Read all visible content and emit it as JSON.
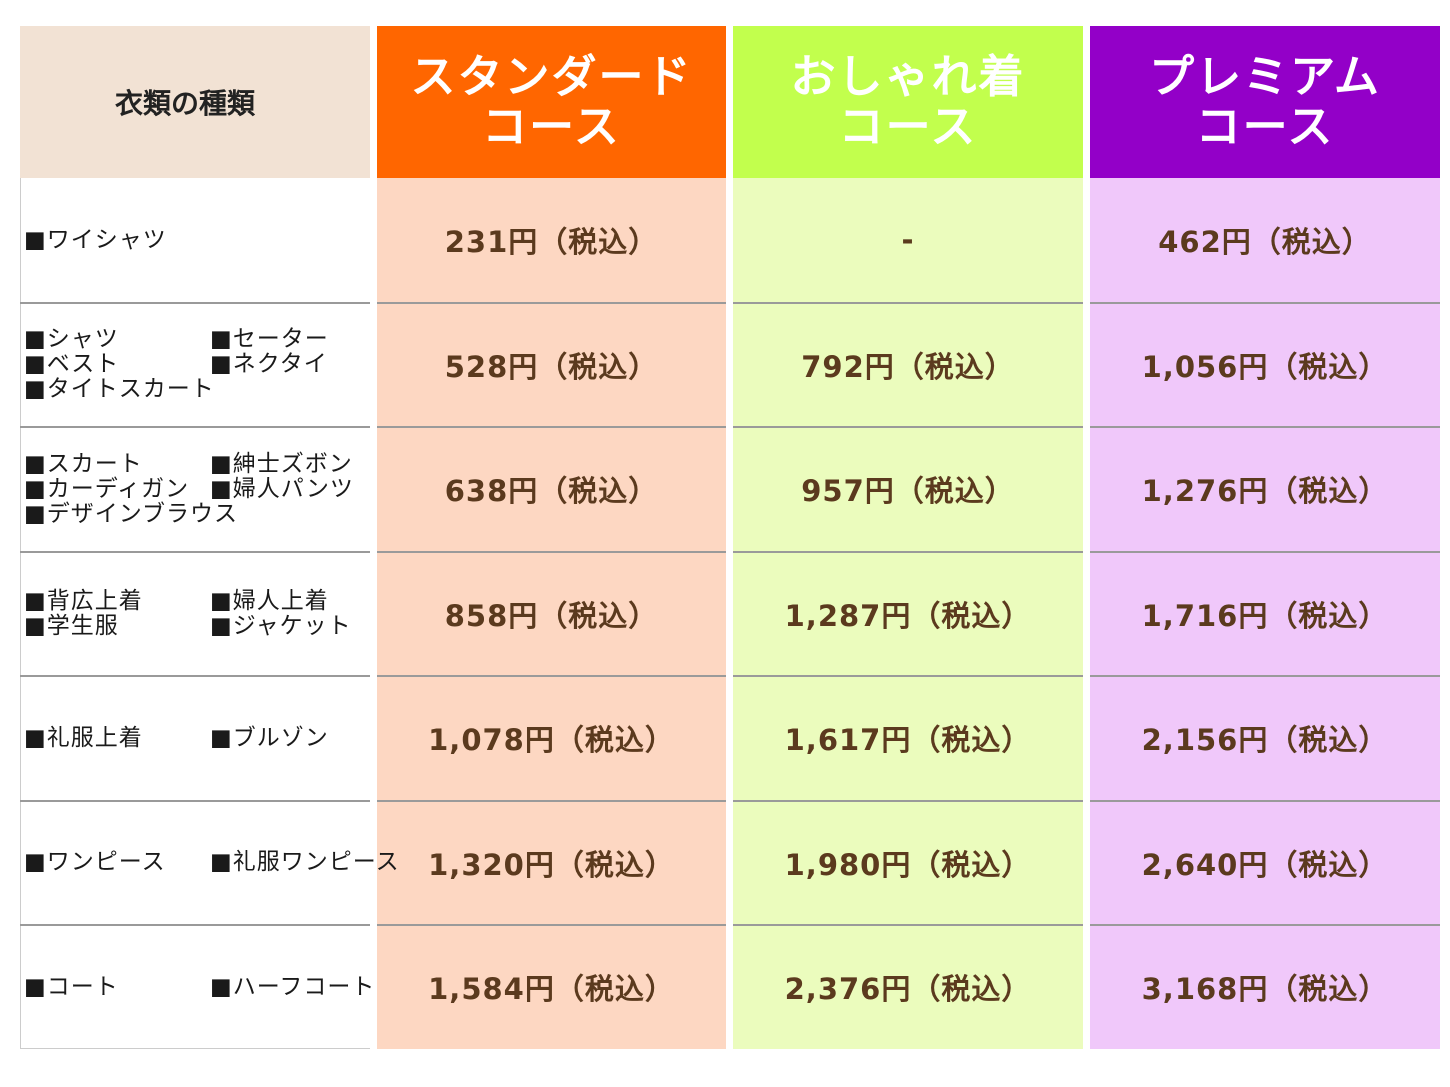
{
  "header": {
    "label": "衣類の種類",
    "courses": [
      {
        "line1": "スタンダード",
        "line2": "コース",
        "color": "#ff6600"
      },
      {
        "line1": "おしゃれ着",
        "line2": "コース",
        "color": "#c2ff4d"
      },
      {
        "line1": "プレミアム",
        "line2": "コース",
        "color": "#9300c8"
      }
    ]
  },
  "rows": [
    {
      "items": [
        "■ワイシャツ"
      ],
      "prices": [
        "231円（税込）",
        "-",
        "462円（税込）"
      ]
    },
    {
      "items": [
        "■シャツ",
        "■セーター",
        "■ベスト",
        "■ネクタイ",
        "■タイトスカート"
      ],
      "prices": [
        "528円（税込）",
        "792円（税込）",
        "1,056円（税込）"
      ]
    },
    {
      "items": [
        "■スカート",
        "■紳士ズボン",
        "■カーディガン",
        "■婦人パンツ",
        "■デザインブラウス"
      ],
      "prices": [
        "638円（税込）",
        "957円（税込）",
        "1,276円（税込）"
      ]
    },
    {
      "items": [
        "■背広上着",
        "■婦人上着",
        "■学生服",
        "■ジャケット"
      ],
      "prices": [
        "858円（税込）",
        "1,287円（税込）",
        "1,716円（税込）"
      ]
    },
    {
      "items": [
        "■礼服上着",
        "■ブルゾン"
      ],
      "prices": [
        "1,078円（税込）",
        "1,617円（税込）",
        "2,156円（税込）"
      ]
    },
    {
      "items": [
        "■ワンピース",
        "■礼服ワンピース"
      ],
      "prices": [
        "1,320円（税込）",
        "1,980円（税込）",
        "2,640円（税込）"
      ]
    },
    {
      "items": [
        "■コート",
        "■ハーフコート"
      ],
      "prices": [
        "1,584円（税込）",
        "2,376円（税込）",
        "3,168円（税込）"
      ]
    }
  ]
}
